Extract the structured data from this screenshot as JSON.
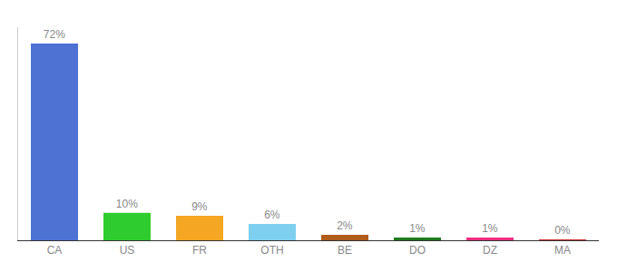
{
  "chart_data": {
    "type": "bar",
    "categories": [
      "CA",
      "US",
      "FR",
      "OTH",
      "BE",
      "DO",
      "DZ",
      "MA"
    ],
    "values": [
      72,
      10,
      9,
      6,
      2,
      1,
      1,
      0.3
    ],
    "value_labels": [
      "72%",
      "10%",
      "9%",
      "6%",
      "2%",
      "1%",
      "1%",
      "0%"
    ],
    "colors": [
      "#4d72d4",
      "#2ecc2e",
      "#f5a623",
      "#7ecff0",
      "#b05c1a",
      "#1e7a1e",
      "#f02d80",
      "#cc3333"
    ],
    "ylim": [
      0,
      78
    ],
    "data_labels": true,
    "tick_labels": "x",
    "grid": false
  }
}
